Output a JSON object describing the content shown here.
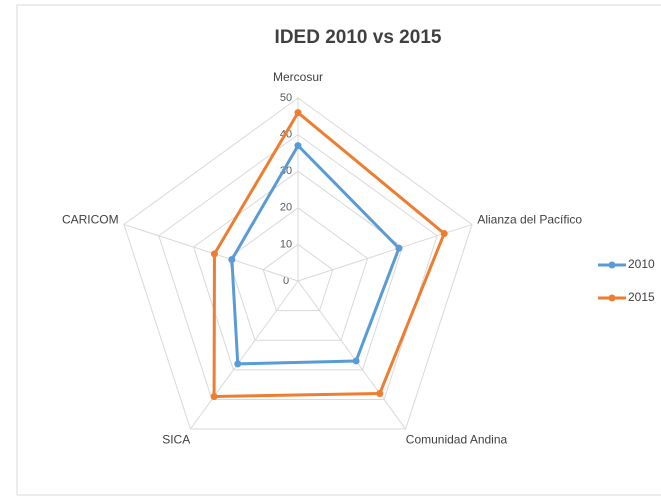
{
  "chart_data": {
    "type": "radar",
    "title": "IDED 2010 vs 2015",
    "categories": [
      "Mercosur",
      "Alianza del Pacífico",
      "Comunidad Andina",
      "SICA",
      "CARICOM"
    ],
    "series": [
      {
        "name": "2010",
        "color": "#5b9bd5",
        "values": [
          37,
          29,
          27,
          28,
          19
        ]
      },
      {
        "name": "2015",
        "color": "#ed7d31",
        "values": [
          46,
          42,
          38,
          39,
          24
        ]
      }
    ],
    "ylim": [
      0,
      50
    ],
    "yticks": [
      0,
      10,
      20,
      30,
      40,
      50
    ],
    "grid": true,
    "legend": "right"
  }
}
